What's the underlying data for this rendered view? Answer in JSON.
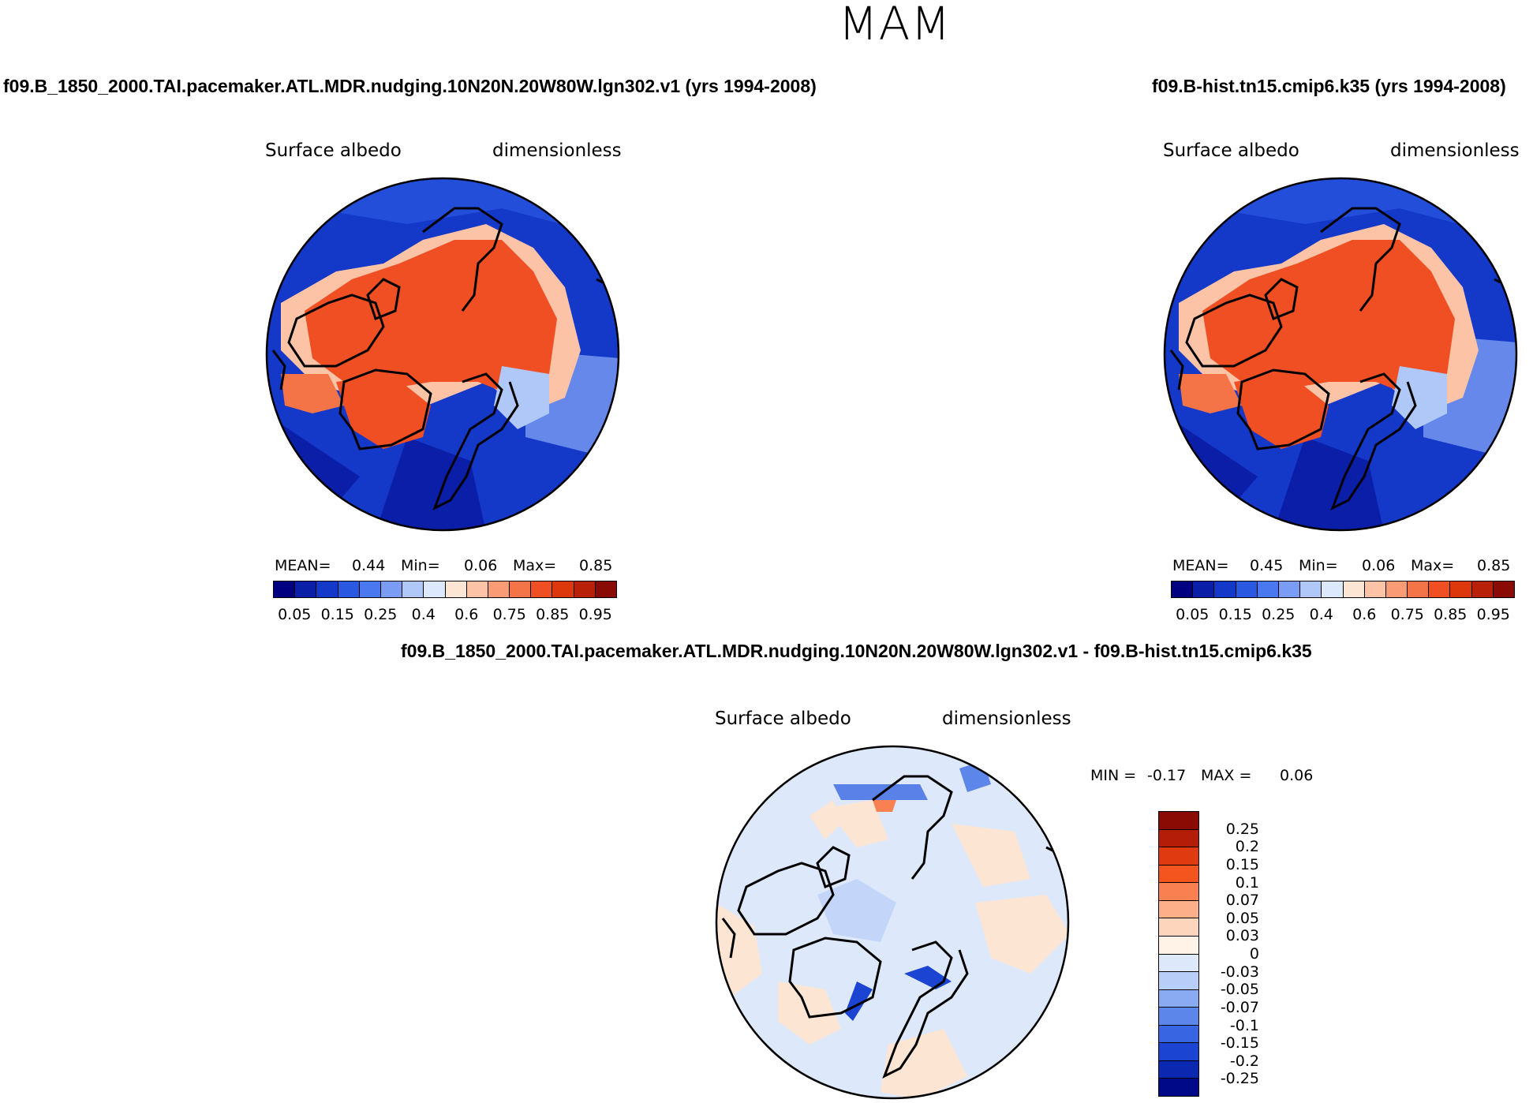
{
  "season": "MAM",
  "panel1": {
    "case": "f09.B_1850_2000.TAI.pacemaker.ATL.MDR.nudging.10N20N.20W80W.lgn302.v1 (yrs 1994-2008)",
    "variable": "Surface albedo",
    "units": "dimensionless",
    "mean_label": "MEAN=",
    "mean": "0.44",
    "min_label": "Min=",
    "min": "0.06",
    "max_label": "Max=",
    "max": "0.85"
  },
  "panel2": {
    "case": "f09.B-hist.tn15.cmip6.k35 (yrs 1994-2008)",
    "variable": "Surface albedo",
    "units": "dimensionless",
    "mean_label": "MEAN=",
    "mean": "0.45",
    "min_label": "Min=",
    "min": "0.06",
    "max_label": "Max=",
    "max": "0.85"
  },
  "panel3": {
    "case": "f09.B_1850_2000.TAI.pacemaker.ATL.MDR.nudging.10N20N.20W80W.lgn302.v1 - f09.B-hist.tn15.cmip6.k35",
    "variable": "Surface albedo",
    "units": "dimensionless",
    "min_label": "MIN =",
    "min": "-0.17",
    "max_label": "MAX =",
    "max": "0.06"
  },
  "colorbar_abs": {
    "colors": [
      "#000080",
      "#0a1ea8",
      "#1438c8",
      "#2a58e0",
      "#4a78f0",
      "#7a9cf4",
      "#b0c8f8",
      "#dce9fc",
      "#fde5d4",
      "#fcc3a6",
      "#f99c76",
      "#f47448",
      "#ef4f22",
      "#dc380c",
      "#b82008",
      "#8a0a04"
    ],
    "tick_labels": [
      "0.05",
      "0.15",
      "0.25",
      "0.4",
      "0.6",
      "0.75",
      "0.85",
      "0.95"
    ]
  },
  "colorbar_diff": {
    "colors": [
      "#8a0a04",
      "#b41e08",
      "#e03a10",
      "#f4541e",
      "#f98050",
      "#fcaf88",
      "#fdd4bc",
      "#fff2e6",
      "#dde9fb",
      "#b8cdf8",
      "#8aaaf2",
      "#5c86ea",
      "#3866e2",
      "#1c44d2",
      "#0a28b0",
      "#000a88"
    ],
    "tick_labels": [
      "0.25",
      "0.2",
      "0.15",
      "0.1",
      "0.07",
      "0.05",
      "0.03",
      "0",
      "-0.03",
      "-0.05",
      "-0.07",
      "-0.1",
      "-0.15",
      "-0.2",
      "-0.25"
    ]
  }
}
